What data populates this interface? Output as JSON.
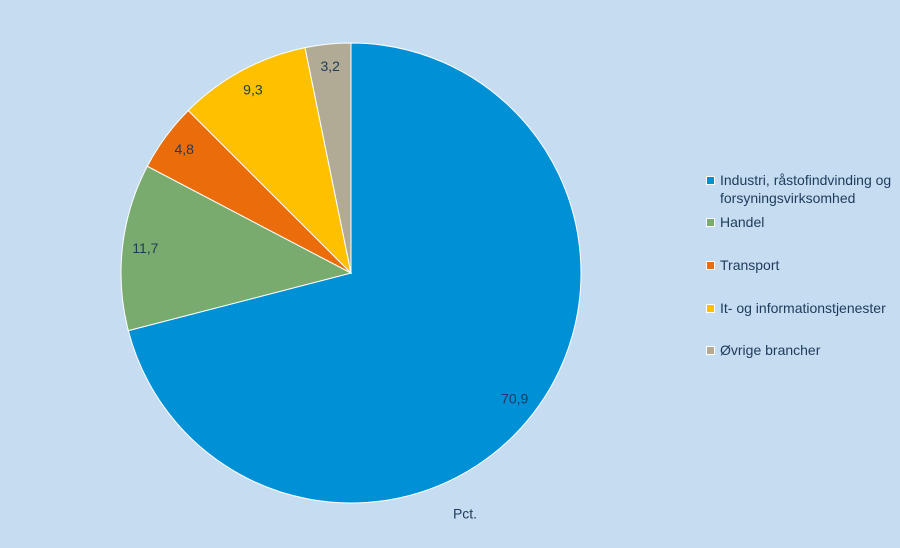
{
  "chart_data": {
    "type": "pie",
    "categories": [
      "Industri, råstofindvinding og forsyningsvirksomhed",
      "Handel",
      "Transport",
      "It- og informationstjenester",
      "Øvrige brancher"
    ],
    "values": [
      70.9,
      11.7,
      4.8,
      9.3,
      3.2
    ],
    "value_labels": [
      "70,9",
      "11,7",
      "4,8",
      "9,3",
      "3,2"
    ],
    "colors": [
      "#0090d6",
      "#7aab6e",
      "#ea6c0a",
      "#ffc000",
      "#b1ab96"
    ],
    "unit_label": "Pct.",
    "legend": "right"
  }
}
